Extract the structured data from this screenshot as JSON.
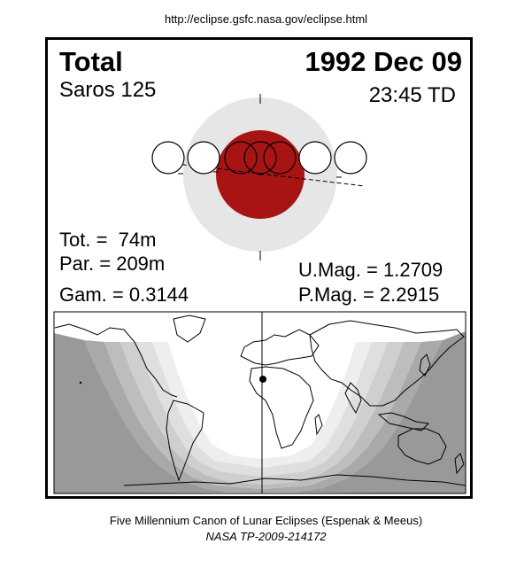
{
  "header": {
    "url": "http://eclipse.gsfc.nasa.gov/eclipse.html"
  },
  "eclipse": {
    "type": "Total",
    "date": "1992 Dec 09",
    "saros": "Saros 125",
    "time": "23:45 TD"
  },
  "stats": {
    "total_duration": "Tot. =  74m",
    "partial_duration": "Par. = 209m",
    "gamma": "Gam. = 0.3144",
    "umbral_magnitude": "U.Mag. = 1.2709",
    "penumbral_magnitude": "P.Mag. = 2.2915"
  },
  "footer": {
    "line1": "Five Millennium Canon of Lunar Eclipses (Espenak & Meeus)",
    "line2": "NASA TP-2009-214172"
  },
  "colors": {
    "penumbra": "#e6e6e6",
    "umbra": "#a81414",
    "map_night": "#999999",
    "map_bands": [
      "#a9a9a9",
      "#bdbdbd",
      "#cfcfcf",
      "#dfdfdf",
      "#eeeeee"
    ]
  }
}
